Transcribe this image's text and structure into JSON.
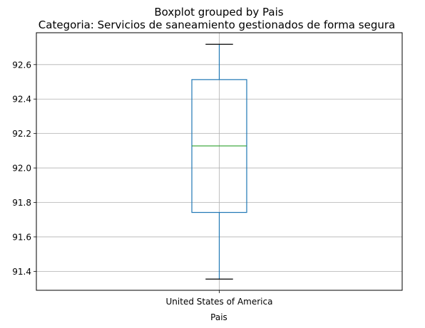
{
  "chart_data": {
    "type": "boxplot",
    "suptitle": "Boxplot grouped by Pais",
    "title": "Categoria: Servicios de saneamiento gestionados de forma segura",
    "xlabel": "Pais",
    "ylabel": "",
    "categories": [
      "United States of America"
    ],
    "boxes": [
      {
        "category": "United States of America",
        "whisker_low": 91.355,
        "q1": 91.742,
        "median": 92.128,
        "q3": 92.513,
        "whisker_high": 92.718
      }
    ],
    "ylim": [
      91.29,
      92.785
    ],
    "yticks": [
      91.4,
      91.6,
      91.8,
      92.0,
      92.2,
      92.4,
      92.6
    ],
    "ytick_labels": [
      "91.4",
      "91.6",
      "91.8",
      "92.0",
      "92.2",
      "92.4",
      "92.6"
    ],
    "grid": true,
    "colors": {
      "box": "#1f77b4",
      "median": "#2ca02c",
      "whisker_cap": "#000000",
      "grid": "#b0b0b0"
    }
  }
}
